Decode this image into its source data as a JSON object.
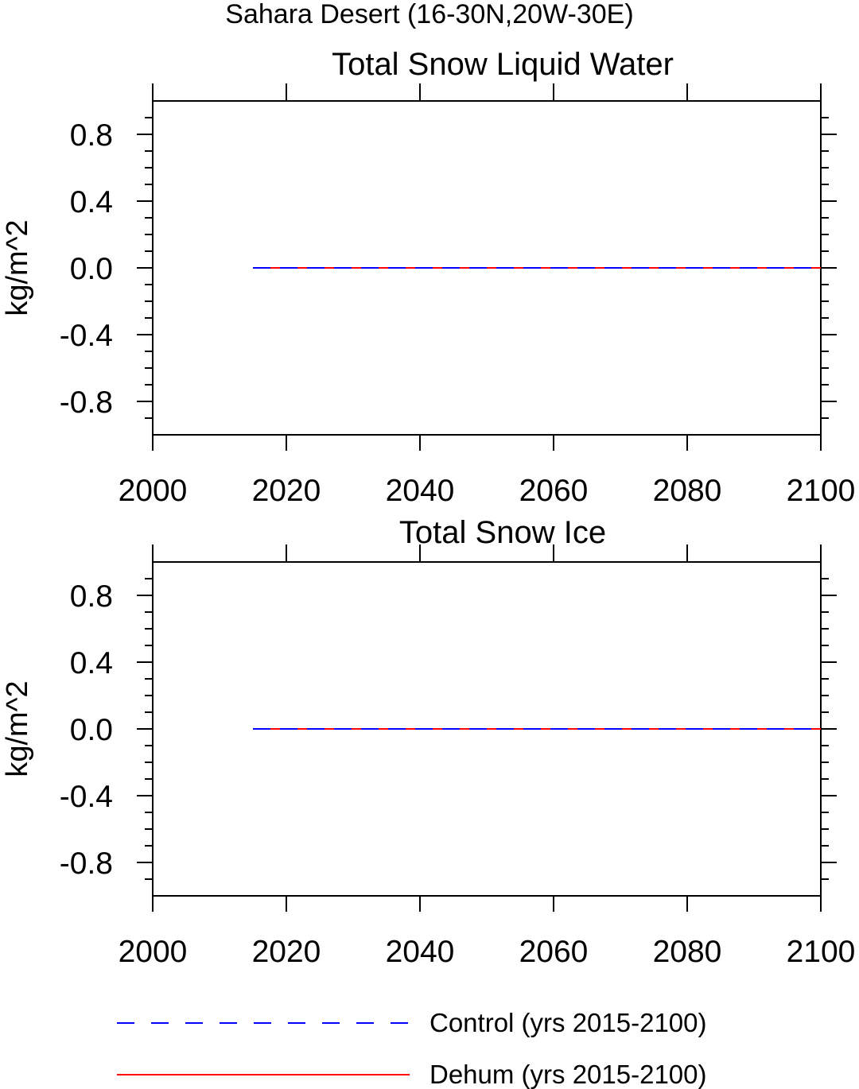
{
  "suptitle": "Sahara Desert (16-30N,20W-30E)",
  "chart_data": [
    {
      "type": "line",
      "title": "Total Snow Liquid Water",
      "xlabel": "",
      "ylabel": "kg/m^2",
      "xlim": [
        2000,
        2100
      ],
      "ylim": [
        -1.0,
        1.0
      ],
      "x_ticks": [
        2000,
        2020,
        2040,
        2060,
        2080,
        2100
      ],
      "x_tick_labels": [
        "2000",
        "2020",
        "2040",
        "2060",
        "2080",
        "2100"
      ],
      "y_ticks": [
        0.8,
        0.4,
        0.0,
        -0.4,
        -0.8
      ],
      "y_tick_labels": [
        "0.8",
        "0.4",
        "0.0",
        "-0.4",
        "-0.8"
      ],
      "grid": false,
      "series": [
        {
          "name": "Control (yrs 2015-2100)",
          "color": "#0000ff",
          "style": "dashed",
          "x": [
            2015,
            2100
          ],
          "values": [
            0.0,
            0.0
          ]
        },
        {
          "name": "Dehum (yrs 2015-2100)",
          "color": "#ff0000",
          "style": "solid",
          "x": [
            2015,
            2100
          ],
          "values": [
            0.0,
            0.0
          ]
        }
      ]
    },
    {
      "type": "line",
      "title": "Total Snow Ice",
      "xlabel": "",
      "ylabel": "kg/m^2",
      "xlim": [
        2000,
        2100
      ],
      "ylim": [
        -1.0,
        1.0
      ],
      "x_ticks": [
        2000,
        2020,
        2040,
        2060,
        2080,
        2100
      ],
      "x_tick_labels": [
        "2000",
        "2020",
        "2040",
        "2060",
        "2080",
        "2100"
      ],
      "y_ticks": [
        0.8,
        0.4,
        0.0,
        -0.4,
        -0.8
      ],
      "y_tick_labels": [
        "0.8",
        "0.4",
        "0.0",
        "-0.4",
        "-0.8"
      ],
      "grid": false,
      "series": [
        {
          "name": "Control (yrs 2015-2100)",
          "color": "#0000ff",
          "style": "dashed",
          "x": [
            2015,
            2100
          ],
          "values": [
            0.0,
            0.0
          ]
        },
        {
          "name": "Dehum (yrs 2015-2100)",
          "color": "#ff0000",
          "style": "solid",
          "x": [
            2015,
            2100
          ],
          "values": [
            0.0,
            0.0
          ]
        }
      ]
    }
  ],
  "legend": {
    "placement": "bottom",
    "entries": [
      {
        "label": "Control (yrs 2015-2100)",
        "color": "#0000ff",
        "style": "dashed"
      },
      {
        "label": "Dehum (yrs 2015-2100)",
        "color": "#ff0000",
        "style": "solid"
      }
    ]
  }
}
